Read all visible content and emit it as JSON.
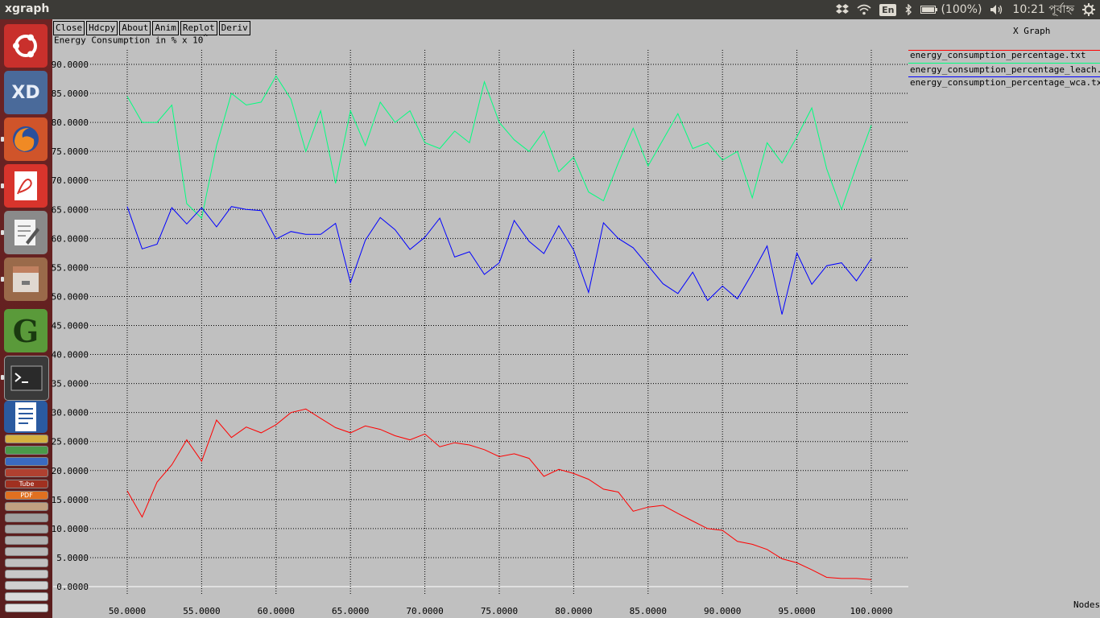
{
  "window": {
    "title": "xgraph"
  },
  "tray": {
    "keyboard_layout": "En",
    "battery": "(100%)",
    "time": "10:21 পূর্বাহ্ন"
  },
  "launcher": {
    "items": [
      "ubuntu-dash",
      "xd",
      "firefox",
      "pdf-viewer",
      "text-editor",
      "file-manager",
      "gedit-g",
      "terminal",
      "libreoffice-writer",
      "stacked-apps"
    ],
    "stack_labels": [
      "Tube",
      "PDF"
    ]
  },
  "toolbar": {
    "buttons": [
      "Close",
      "Hdcpy",
      "About",
      "Anim",
      "Replot",
      "Deriv"
    ]
  },
  "graph": {
    "window_label": "X Graph",
    "y_label": "Energy Consumption in % x 10",
    "y_label_suffix": "^",
    "x_label": "Nodes"
  },
  "chart_data": {
    "type": "line",
    "ylabel": "Energy Consumption in % x 10",
    "xlabel": "Nodes",
    "xlim": [
      50,
      100
    ],
    "ylim": [
      0,
      90
    ],
    "grid": true,
    "legend": "right",
    "x_ticks": [
      "50.0000",
      "55.0000",
      "60.0000",
      "65.0000",
      "70.0000",
      "75.0000",
      "80.0000",
      "85.0000",
      "90.0000",
      "95.0000",
      "100.0000"
    ],
    "y_ticks": [
      "0.0000",
      "5.0000",
      "10.0000",
      "15.0000",
      "20.0000",
      "25.0000",
      "30.0000",
      "35.0000",
      "40.0000",
      "45.0000",
      "50.0000",
      "55.0000",
      "60.0000",
      "65.0000",
      "70.0000",
      "75.0000",
      "80.0000",
      "85.0000",
      "90.0000"
    ],
    "x": [
      50,
      51,
      52,
      53,
      54,
      55,
      56,
      57,
      58,
      59,
      60,
      61,
      62,
      63,
      64,
      65,
      66,
      67,
      68,
      69,
      70,
      71,
      72,
      73,
      74,
      75,
      76,
      77,
      78,
      79,
      80,
      81,
      82,
      83,
      84,
      85,
      86,
      87,
      88,
      89,
      90,
      91,
      92,
      93,
      94,
      95,
      96,
      97,
      98,
      99,
      100
    ],
    "series": [
      {
        "name": "energy_consumption_percentage.txt",
        "color": "#ff0000",
        "values": [
          16.5,
          12.0,
          18.0,
          21.0,
          25.3,
          21.6,
          28.7,
          25.7,
          27.5,
          26.5,
          27.9,
          30.0,
          30.6,
          29.0,
          27.4,
          26.5,
          27.7,
          27.1,
          26.0,
          25.3,
          26.3,
          24.1,
          24.8,
          24.4,
          23.6,
          22.4,
          22.9,
          22.1,
          19.0,
          20.2,
          19.5,
          18.5,
          16.8,
          16.3,
          13.0,
          13.7,
          14.0,
          12.6,
          11.3,
          10.0,
          9.7,
          7.8,
          7.3,
          6.4,
          4.8,
          4.1,
          2.9,
          1.6,
          1.4,
          1.4,
          1.2
        ]
      },
      {
        "name": "energy_consumption_percentage_leach.txt",
        "color": "#00ff7f",
        "values": [
          84.5,
          80.0,
          80.0,
          83.0,
          66.0,
          63.5,
          76.0,
          85.0,
          83.0,
          83.5,
          88.0,
          84.0,
          75.0,
          82.0,
          69.5,
          82.0,
          76.0,
          83.5,
          80.0,
          82.0,
          76.5,
          75.5,
          78.5,
          76.5,
          87.0,
          80.0,
          77.0,
          75.0,
          78.5,
          71.5,
          74.0,
          68.0,
          66.5,
          73.0,
          79.0,
          72.5,
          77.0,
          81.5,
          75.5,
          76.5,
          73.5,
          75.0,
          67.0,
          76.5,
          73.0,
          77.5,
          82.5,
          72.0,
          65.0,
          72.5,
          79.5
        ]
      },
      {
        "name": "energy_consumption_percentage_wca.txt",
        "color": "#0000ff",
        "values": [
          65.5,
          58.2,
          59.0,
          65.3,
          62.5,
          65.3,
          62.0,
          65.5,
          65.0,
          64.8,
          59.9,
          61.2,
          60.7,
          60.7,
          62.6,
          52.4,
          59.7,
          63.6,
          61.5,
          58.1,
          60.2,
          63.5,
          56.8,
          57.7,
          53.8,
          55.8,
          63.1,
          59.5,
          57.4,
          62.2,
          58.0,
          50.7,
          62.7,
          60.0,
          58.4,
          55.3,
          52.2,
          50.5,
          54.2,
          49.3,
          51.8,
          49.6,
          54.0,
          58.7,
          46.9,
          57.5,
          52.1,
          55.3,
          55.8,
          52.7,
          56.5
        ]
      }
    ]
  }
}
